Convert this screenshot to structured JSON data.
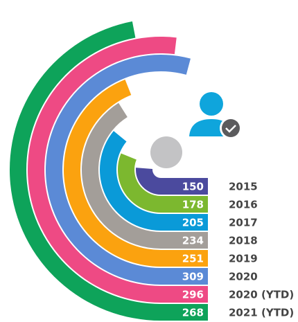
{
  "chart_data": {
    "type": "radial-bar",
    "categories": [
      "2015",
      "2016",
      "2017",
      "2018",
      "2019",
      "2020",
      "2020 (YTD)",
      "2021 (YTD)"
    ],
    "values": [
      150,
      178,
      205,
      234,
      251,
      309,
      296,
      268
    ],
    "colors": [
      "#4b4a9e",
      "#7cb82f",
      "#0a9ad8",
      "#a39e99",
      "#fba20f",
      "#5b8ad6",
      "#ee4a84",
      "#0ea35a"
    ]
  }
}
